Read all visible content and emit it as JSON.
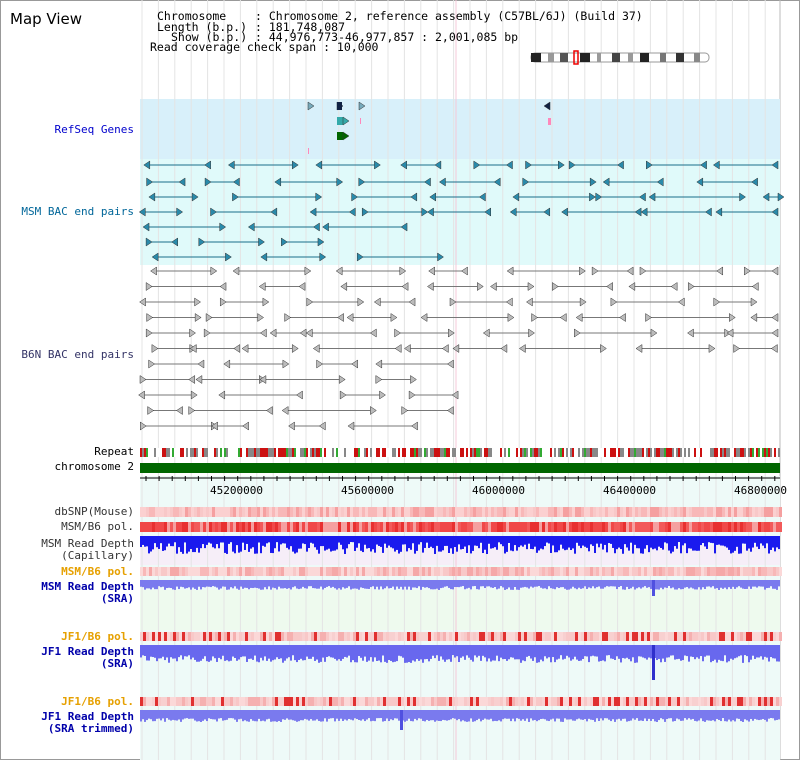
{
  "view_title": "Map View",
  "header": {
    "chromosome_key": "Chromosome",
    "chromosome_value": ": Chromosome 2, reference assembly (C57BL/6J) (Build 37)",
    "length_key": "Length (b.p.)",
    "length_value": ": 181,748,087",
    "show_key": "Show (b.p.)",
    "show_value": ": 44,976,773-46,977,857 : 2,001,085 bp",
    "coverage_text": "Read coverage check span : 10,000"
  },
  "tracks": {
    "refseq_genes": "RefSeq Genes",
    "msm_bac": "MSM BAC end pairs",
    "b6n_bac": "B6N BAC end pairs",
    "repeat": "Repeat",
    "chromosome": "chromosome 2",
    "dbsnp": "dbSNP(Mouse)",
    "msm_b6_pol_1": "MSM/B6 pol.",
    "msm_depth_cap_1": "MSM Read Depth",
    "msm_depth_cap_2": "(Capillary)",
    "msm_b6_pol_2": "MSM/B6 pol.",
    "msm_depth_sra_1": "MSM Read Depth",
    "msm_depth_sra_2": "(SRA)",
    "jf1_b6_pol_1": "JF1/B6 pol.",
    "jf1_depth_sra_1": "JF1 Read Depth",
    "jf1_depth_sra_2": "(SRA)",
    "jf1_b6_pol_2": "JF1/B6 pol.",
    "jf1_depth_trim_1": "JF1 Read Depth",
    "jf1_depth_trim_2": "(SRA trimmed)"
  },
  "axis_ticks": [
    "45200000",
    "45600000",
    "46000000",
    "46400000",
    "46800000"
  ],
  "colors": {
    "refseq_label": "#0000cc",
    "msm_label": "#006699",
    "b6n_label": "#333366",
    "pol_label": "#e6a000",
    "sra_label": "#0000aa",
    "gene_panel": "#d8f0fa",
    "msm_panel": "#e0fafa",
    "chromosome_bar": "#006600"
  }
}
